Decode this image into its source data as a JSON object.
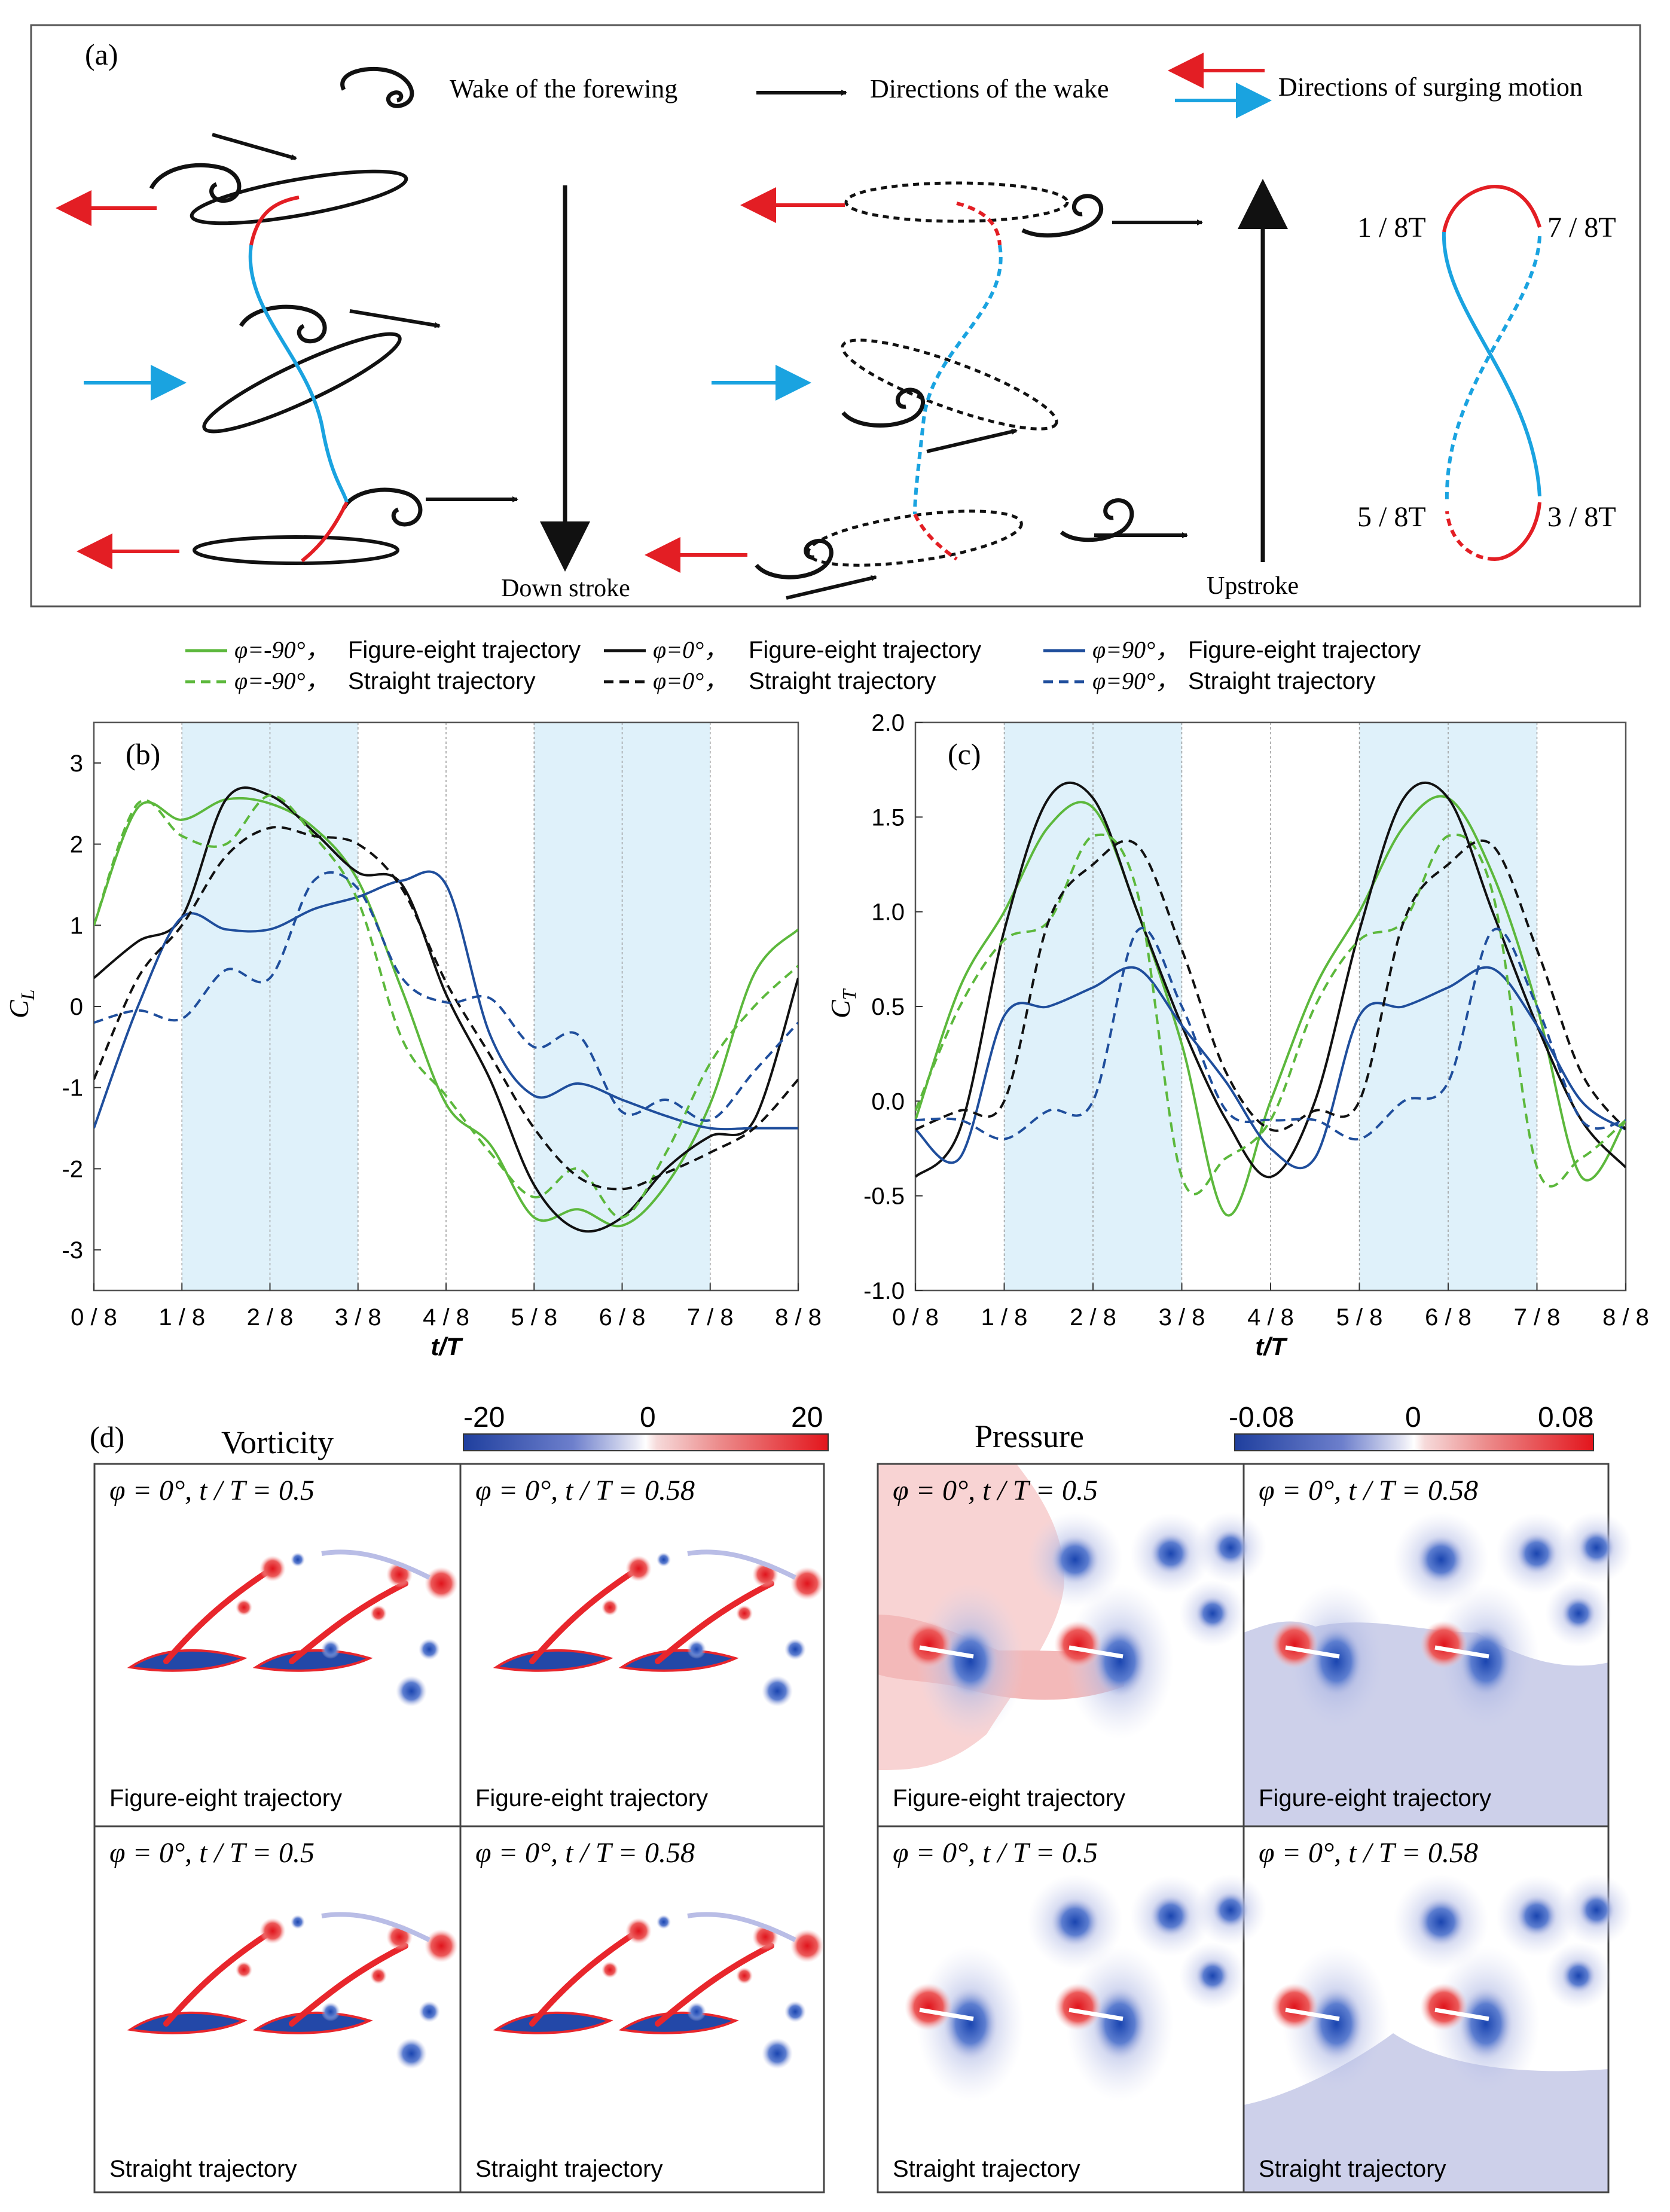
{
  "panel_a": {
    "label": "(a)",
    "legend": {
      "wake": "Wake of the forewing",
      "wake_dir": "Directions of the wake",
      "surge_dir": "Directions of surging motion"
    },
    "downstroke": "Down stroke",
    "upstroke": "Upstroke",
    "phase_labels": [
      "1 / 8T",
      "7 / 8T",
      "5 / 8T",
      "3 / 8T"
    ],
    "colors": {
      "surge_red": "#e31e24",
      "surge_blue": "#1aa3e0",
      "wake": "#111111"
    }
  },
  "legend": {
    "items": [
      {
        "phi": "φ=-90°，",
        "text": "Figure-eight trajectory",
        "color": "#5cb83c",
        "dash": false
      },
      {
        "phi": "φ=0°，",
        "text": "Figure-eight trajectory",
        "color": "#111111",
        "dash": false
      },
      {
        "phi": "φ=90°，",
        "text": "Figure-eight trajectory",
        "color": "#1f4e9c",
        "dash": false
      },
      {
        "phi": "φ=-90°，",
        "text": "Straight trajectory",
        "color": "#5cb83c",
        "dash": true
      },
      {
        "phi": "φ=0°，",
        "text": "Straight trajectory",
        "color": "#111111",
        "dash": true
      },
      {
        "phi": "φ=90°，",
        "text": "Straight trajectory",
        "color": "#1f4e9c",
        "dash": true
      }
    ]
  },
  "chart_data": [
    {
      "panel": "(b)",
      "type": "line",
      "xlabel": "t/T",
      "ylabel": "C_L",
      "xlim": [
        0,
        1
      ],
      "ylim": [
        -3.5,
        3.5
      ],
      "xticks": [
        0,
        0.125,
        0.25,
        0.375,
        0.5,
        0.625,
        0.75,
        0.875,
        1
      ],
      "xtick_labels": [
        "0 / 8",
        "1 / 8",
        "2 / 8",
        "3 / 8",
        "4 / 8",
        "5 / 8",
        "6 / 8",
        "7 / 8",
        "8 / 8"
      ],
      "yticks": [
        -3,
        -2,
        -1,
        0,
        1,
        2,
        3
      ],
      "ytick_labels": [
        "-3",
        "-2",
        "-1",
        "0",
        "1",
        "2",
        "3"
      ],
      "shaded": [
        [
          0.125,
          0.375
        ],
        [
          0.625,
          0.875
        ]
      ],
      "x": [
        0,
        0.0625,
        0.125,
        0.1875,
        0.25,
        0.3125,
        0.375,
        0.4375,
        0.5,
        0.5625,
        0.625,
        0.6875,
        0.75,
        0.8125,
        0.875,
        0.9375,
        1
      ],
      "series": [
        {
          "name": "φ=-90°, Figure-eight trajectory",
          "values": [
            1.0,
            2.45,
            2.3,
            2.55,
            2.5,
            2.2,
            1.55,
            0.2,
            -1.2,
            -1.7,
            -2.6,
            -2.5,
            -2.7,
            -2.2,
            -1.2,
            0.4,
            0.95
          ]
        },
        {
          "name": "φ=0°, Figure-eight trajectory",
          "values": [
            0.35,
            0.8,
            1.1,
            2.55,
            2.6,
            2.15,
            1.65,
            1.5,
            0.15,
            -0.9,
            -2.2,
            -2.75,
            -2.6,
            -2.0,
            -1.6,
            -1.4,
            0.35
          ]
        },
        {
          "name": "φ=90°, Figure-eight trajectory",
          "values": [
            -1.5,
            0.0,
            1.1,
            0.95,
            0.95,
            1.2,
            1.35,
            1.55,
            1.5,
            -0.35,
            -1.1,
            -0.95,
            -1.15,
            -1.35,
            -1.5,
            -1.5,
            -1.5
          ]
        },
        {
          "name": "φ=-90°, Straight trajectory",
          "values": [
            1.0,
            2.5,
            2.1,
            2.0,
            2.6,
            2.1,
            1.3,
            -0.4,
            -1.1,
            -1.8,
            -2.35,
            -2.0,
            -2.6,
            -1.8,
            -0.7,
            0.0,
            0.5
          ]
        },
        {
          "name": "φ=0°, Straight trajectory",
          "values": [
            -0.9,
            0.35,
            1.0,
            1.85,
            2.2,
            2.1,
            2.0,
            1.45,
            0.3,
            -0.6,
            -1.5,
            -2.1,
            -2.25,
            -2.05,
            -1.8,
            -1.5,
            -0.9
          ]
        },
        {
          "name": "φ=90°, Straight trajectory",
          "values": [
            -0.2,
            -0.05,
            -0.15,
            0.45,
            0.35,
            1.55,
            1.45,
            0.35,
            0.05,
            0.1,
            -0.5,
            -0.35,
            -1.3,
            -1.15,
            -1.4,
            -0.8,
            -0.2
          ]
        }
      ]
    },
    {
      "panel": "(c)",
      "type": "line",
      "xlabel": "t/T",
      "ylabel": "C_T",
      "xlim": [
        0,
        1
      ],
      "ylim": [
        -1.0,
        2.0
      ],
      "xticks": [
        0,
        0.125,
        0.25,
        0.375,
        0.5,
        0.625,
        0.75,
        0.875,
        1
      ],
      "xtick_labels": [
        "0 / 8",
        "1 / 8",
        "2 / 8",
        "3 / 8",
        "4 / 8",
        "5 / 8",
        "6 / 8",
        "7 / 8",
        "8 / 8"
      ],
      "yticks": [
        -1.0,
        -0.5,
        0.0,
        0.5,
        1.0,
        1.5,
        2.0
      ],
      "ytick_labels": [
        "-1.0",
        "-0.5",
        "0.0",
        "0.5",
        "1.0",
        "1.5",
        "2.0"
      ],
      "shaded": [
        [
          0.125,
          0.375
        ],
        [
          0.625,
          0.875
        ]
      ],
      "x": [
        0,
        0.0625,
        0.125,
        0.1875,
        0.25,
        0.3125,
        0.375,
        0.4375,
        0.5,
        0.5625,
        0.625,
        0.6875,
        0.75,
        0.8125,
        0.875,
        0.9375,
        1
      ],
      "series": [
        {
          "name": "φ=-90°, Figure-eight trajectory",
          "values": [
            -0.1,
            0.6,
            1.0,
            1.45,
            1.55,
            1.0,
            0.3,
            -0.6,
            0.0,
            0.6,
            1.0,
            1.45,
            1.6,
            1.2,
            0.5,
            -0.4,
            -0.1
          ]
        },
        {
          "name": "φ=0°, Figure-eight trajectory",
          "values": [
            -0.4,
            -0.15,
            0.9,
            1.6,
            1.6,
            1.0,
            0.4,
            -0.1,
            -0.4,
            0.0,
            0.9,
            1.6,
            1.6,
            1.0,
            0.4,
            -0.1,
            -0.35
          ]
        },
        {
          "name": "φ=90°, Figure-eight trajectory",
          "values": [
            -0.15,
            -0.3,
            0.45,
            0.5,
            0.6,
            0.7,
            0.4,
            0.1,
            -0.25,
            -0.3,
            0.45,
            0.5,
            0.6,
            0.7,
            0.4,
            0.0,
            -0.15
          ]
        },
        {
          "name": "φ=-90°, Straight trajectory",
          "values": [
            -0.05,
            0.5,
            0.85,
            0.95,
            1.4,
            1.1,
            -0.4,
            -0.3,
            -0.1,
            0.5,
            0.85,
            0.95,
            1.4,
            1.1,
            -0.35,
            -0.3,
            -0.1
          ]
        },
        {
          "name": "φ=0°, Straight trajectory",
          "values": [
            -0.15,
            -0.05,
            0.0,
            0.95,
            1.25,
            1.35,
            0.8,
            0.15,
            -0.15,
            -0.05,
            0.0,
            0.95,
            1.25,
            1.35,
            0.8,
            0.15,
            -0.15
          ]
        },
        {
          "name": "φ=90°, Straight trajectory",
          "values": [
            -0.1,
            -0.1,
            -0.2,
            -0.05,
            0.0,
            0.9,
            0.5,
            -0.05,
            -0.1,
            -0.1,
            -0.2,
            0.0,
            0.1,
            0.9,
            0.5,
            -0.1,
            -0.1
          ]
        }
      ]
    }
  ],
  "panel_d": {
    "label": "(d)",
    "vorticity_title": "Vorticity",
    "pressure_title": "Pressure",
    "vort_colorbar": [
      "-20",
      "0",
      "20"
    ],
    "press_colorbar": [
      "-0.08",
      "0",
      "0.08"
    ],
    "cells": [
      {
        "phi": "φ = 0°, t / T = 0.5",
        "traj": "Figure-eight trajectory"
      },
      {
        "phi": "φ = 0°, t / T = 0.58",
        "traj": "Figure-eight trajectory"
      },
      {
        "phi": "φ = 0°, t / T = 0.5",
        "traj": "Straight trajectory"
      },
      {
        "phi": "φ = 0°, t / T = 0.58",
        "traj": "Straight trajectory"
      },
      {
        "phi": "φ = 0°, t / T = 0.5",
        "traj": "Figure-eight trajectory"
      },
      {
        "phi": "φ = 0°, t / T = 0.58",
        "traj": "Figure-eight trajectory"
      },
      {
        "phi": "φ = 0°, t / T = 0.5",
        "traj": "Straight trajectory"
      },
      {
        "phi": "φ = 0°, t / T = 0.58",
        "traj": "Straight trajectory"
      }
    ],
    "colors": {
      "red": "#e8262c",
      "blue": "#1f4fb5",
      "pink": "#f7c9c9",
      "lavender": "#c9cbe8"
    }
  }
}
